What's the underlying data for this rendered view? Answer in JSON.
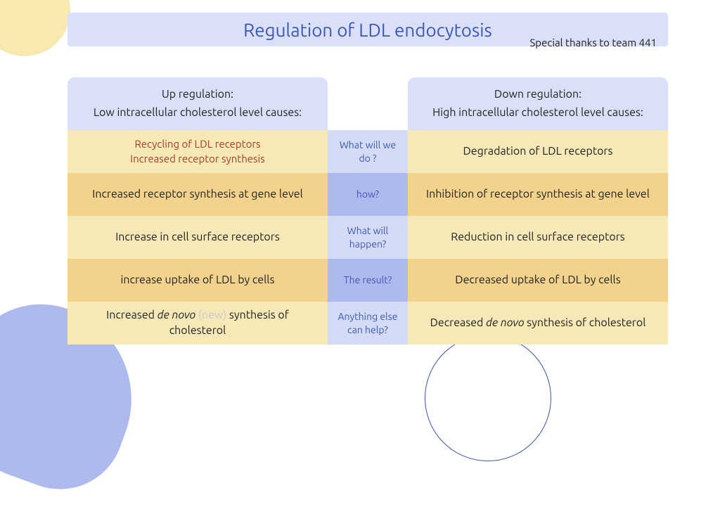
{
  "title": "Regulation of LDL endocytosis",
  "thanks": "Special thanks to team 441",
  "colors": {
    "title_bg": "#dae0f7",
    "title_text": "#3d57b6",
    "header_bg": "#dae0f7",
    "band_light_yellow": "#f7e9b7",
    "band_dark_yellow": "#f3d38c",
    "band_light_blue": "#d4dcf5",
    "band_dark_blue": "#aeb9ed",
    "mid_text": "#3d57b6",
    "red_text": "#a63a2c",
    "body_text": "#222222",
    "blob_yellow": "#f7e9b0",
    "blob_blue": "#aeb9ed",
    "circle_stroke": "#3752b5"
  },
  "left_header": {
    "line1": "Up regulation:",
    "line2": "Low intracellular cholesterol level causes:"
  },
  "right_header": {
    "line1": "Down regulation:",
    "line2": "High intracellular cholesterol level causes:"
  },
  "rows": [
    {
      "left_line1": "Recycling of LDL receptors",
      "left_line2": "Increased receptor synthesis",
      "left_red": true,
      "mid": "What will we do ?",
      "right": "Degradation of LDL receptors"
    },
    {
      "left": "Increased receptor synthesis at gene level",
      "mid": "how?",
      "right": "Inhibition of receptor synthesis at gene level"
    },
    {
      "left": "Increase in cell surface receptors",
      "mid": "What will happen?",
      "right": "Reduction in cell surface receptors"
    },
    {
      "left": "increase uptake of LDL by cells",
      "mid": "The result?",
      "right": "Decreased uptake of LDL by cells"
    },
    {
      "left_pre": "Increased ",
      "left_em": "de novo",
      "left_gray": " (new)",
      "left_post": " synthesis of cholesterol",
      "mid": "Anything else can help?",
      "right_pre": "Decreased ",
      "right_em": "de novo",
      "right_post": " synthesis of cholesterol"
    }
  ]
}
